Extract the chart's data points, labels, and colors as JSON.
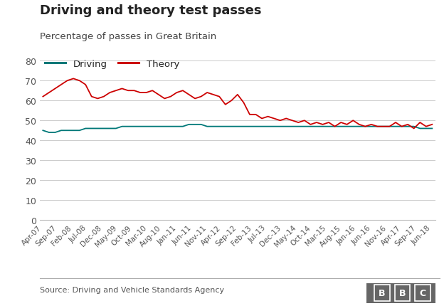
{
  "title": "Driving and theory test passes",
  "subtitle": "Percentage of passes in Great Britain",
  "source": "Source: Driving and Vehicle Standards Agency",
  "driving_color": "#007878",
  "theory_color": "#cc0000",
  "background_color": "#ffffff",
  "ylim": [
    0,
    80
  ],
  "yticks": [
    0,
    10,
    20,
    30,
    40,
    50,
    60,
    70,
    80
  ],
  "x_labels": [
    "Apr-07",
    "Sep-07",
    "Feb-08",
    "Jul-08",
    "Dec-08",
    "May-09",
    "Oct-09",
    "Mar-10",
    "Aug-10",
    "Jan-11",
    "Jun-11",
    "Nov-11",
    "Apr-12",
    "Sep-12",
    "Feb-13",
    "Jul-13",
    "Dec-13",
    "May-14",
    "Oct-14",
    "Mar-15",
    "Aug-15",
    "Jan-16",
    "Jun-16",
    "Nov-16",
    "Apr-17",
    "Sep-17",
    "Jun-18"
  ],
  "theory_y": [
    62,
    64,
    66,
    68,
    70,
    71,
    70,
    68,
    62,
    61,
    62,
    64,
    65,
    66,
    65,
    65,
    64,
    64,
    65,
    63,
    61,
    62,
    64,
    65,
    63,
    61,
    62,
    64,
    63,
    62,
    58,
    60,
    63,
    59,
    53,
    53,
    51,
    52,
    51,
    50,
    51,
    50,
    49,
    50,
    48,
    49,
    48,
    49,
    47,
    49,
    48,
    50,
    48,
    47,
    48,
    47,
    47,
    47,
    49,
    47,
    48,
    46,
    49,
    47,
    48
  ],
  "driving_y": [
    45,
    44,
    44,
    45,
    45,
    45,
    45,
    46,
    46,
    46,
    46,
    46,
    46,
    47,
    47,
    47,
    47,
    47,
    47,
    47,
    47,
    47,
    47,
    47,
    48,
    48,
    48,
    47,
    47,
    47,
    47,
    47,
    47,
    47,
    47,
    47,
    47,
    47,
    47,
    47,
    47,
    47,
    47,
    47,
    47,
    47,
    47,
    47,
    47,
    47,
    47,
    47,
    47,
    47,
    47,
    47,
    47,
    47,
    47,
    47,
    47,
    47,
    46,
    46,
    46
  ]
}
